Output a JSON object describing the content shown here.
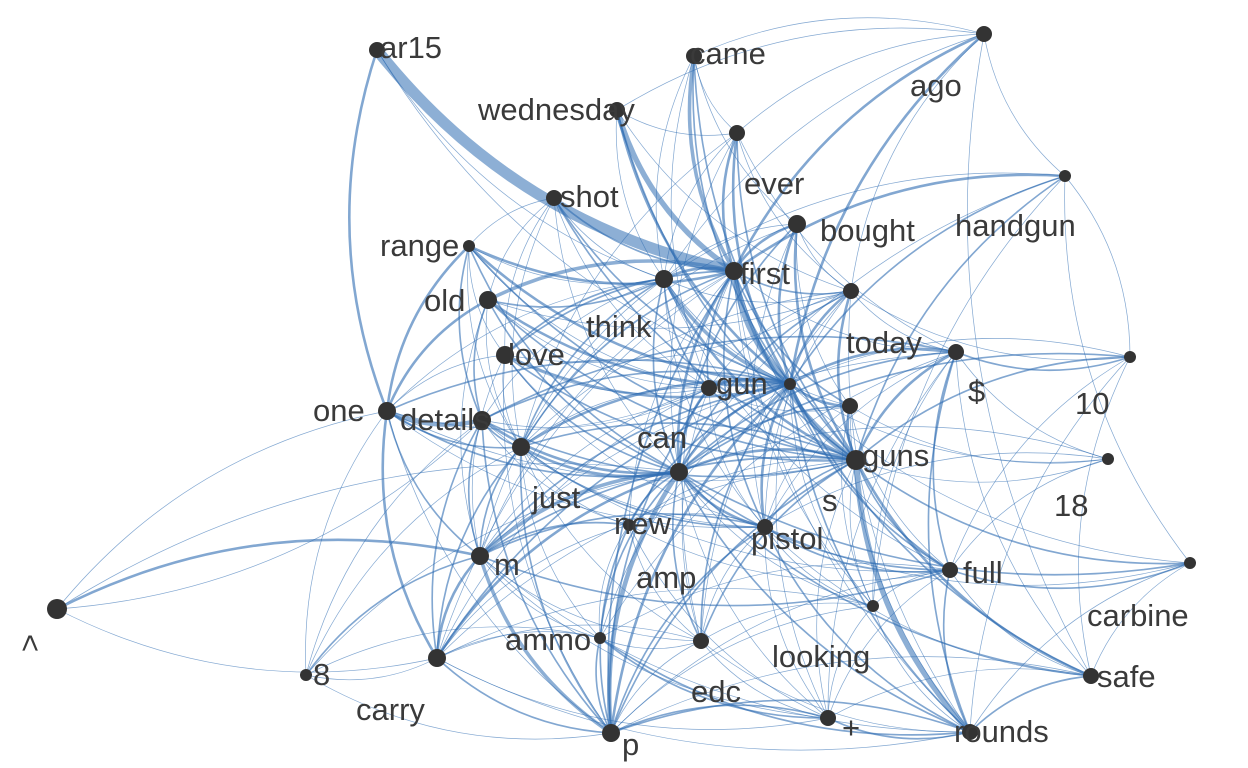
{
  "colors": {
    "background": "#ffffff",
    "edge": "#2f6db3",
    "node": "#333333",
    "label": "#3a3a3a"
  },
  "nodes": [
    {
      "id": "ar15",
      "label": "ar15",
      "size": 2
    },
    {
      "id": "came",
      "label": "came",
      "size": 2
    },
    {
      "id": "ago",
      "label": "ago",
      "size": 2
    },
    {
      "id": "wednesday",
      "label": "wednesday",
      "size": 2
    },
    {
      "id": "ever",
      "label": "ever",
      "size": 2
    },
    {
      "id": "shot",
      "label": "shot",
      "size": 2
    },
    {
      "id": "bought",
      "label": "bought",
      "size": 3
    },
    {
      "id": "handgun",
      "label": "handgun",
      "size": 1
    },
    {
      "id": "range",
      "label": "range",
      "size": 1
    },
    {
      "id": "first",
      "label": "first",
      "size": 3
    },
    {
      "id": "old",
      "label": "old",
      "size": 3
    },
    {
      "id": "think",
      "label": "think",
      "size": 3
    },
    {
      "id": "today",
      "label": "today",
      "size": 2
    },
    {
      "id": "love",
      "label": "love",
      "size": 3
    },
    {
      "id": "dollar",
      "label": "$",
      "size": 2
    },
    {
      "id": "ten",
      "label": "10",
      "size": 1
    },
    {
      "id": "gun",
      "label": "gun",
      "size": 1
    },
    {
      "id": "one",
      "label": "one",
      "size": 3
    },
    {
      "id": "details",
      "label": "details",
      "size": 3
    },
    {
      "id": "can",
      "label": "can",
      "size": 2
    },
    {
      "id": "guns",
      "label": "guns",
      "size": 2
    },
    {
      "id": "s",
      "label": "s",
      "size": 4
    },
    {
      "id": "eighteen",
      "label": "18",
      "size": 1
    },
    {
      "id": "just",
      "label": "just",
      "size": 3
    },
    {
      "id": "new",
      "label": "new",
      "size": 3
    },
    {
      "id": "pistol",
      "label": "pistol",
      "size": 2
    },
    {
      "id": "amp",
      "label": "amp",
      "size": 1
    },
    {
      "id": "m",
      "label": "m",
      "size": 3
    },
    {
      "id": "full",
      "label": "full",
      "size": 2
    },
    {
      "id": "carbine",
      "label": "carbine",
      "size": 1
    },
    {
      "id": "lt",
      "label": "<",
      "size": 4
    },
    {
      "id": "ammo",
      "label": "ammo",
      "size": 1
    },
    {
      "id": "looking",
      "label": "looking",
      "size": 1
    },
    {
      "id": "edc",
      "label": "edc",
      "size": 2
    },
    {
      "id": "eight",
      "label": "8",
      "size": 1
    },
    {
      "id": "carry",
      "label": "carry",
      "size": 3
    },
    {
      "id": "safe",
      "label": "safe",
      "size": 2
    },
    {
      "id": "plus",
      "label": "+",
      "size": 2
    },
    {
      "id": "rounds",
      "label": "rounds",
      "size": 2
    },
    {
      "id": "p",
      "label": "p",
      "size": 3
    }
  ],
  "edges": [
    [
      "ar15",
      "first",
      12
    ],
    [
      "ar15",
      "one",
      3
    ],
    [
      "ar15",
      "gun",
      1
    ],
    [
      "ar15",
      "think",
      1
    ],
    [
      "came",
      "first",
      4
    ],
    [
      "came",
      "can",
      1
    ],
    [
      "came",
      "gun",
      2
    ],
    [
      "came",
      "s",
      2
    ],
    [
      "came",
      "bought",
      1
    ],
    [
      "came",
      "ever",
      1
    ],
    [
      "came",
      "think",
      1
    ],
    [
      "ago",
      "first",
      3
    ],
    [
      "ago",
      "gun",
      3
    ],
    [
      "ago",
      "wednesday",
      1
    ],
    [
      "ago",
      "came",
      1
    ],
    [
      "ago",
      "ever",
      1
    ],
    [
      "ago",
      "handgun",
      1
    ],
    [
      "ago",
      "safe",
      1
    ],
    [
      "ago",
      "think",
      1
    ],
    [
      "ago",
      "today",
      1
    ],
    [
      "wednesday",
      "first",
      6
    ],
    [
      "wednesday",
      "gun",
      3
    ],
    [
      "wednesday",
      "s",
      2
    ],
    [
      "wednesday",
      "ever",
      1
    ],
    [
      "wednesday",
      "today",
      1
    ],
    [
      "wednesday",
      "think",
      1
    ],
    [
      "ever",
      "gun",
      3
    ],
    [
      "ever",
      "first",
      3
    ],
    [
      "ever",
      "s",
      2
    ],
    [
      "ever",
      "new",
      1
    ],
    [
      "ever",
      "think",
      1
    ],
    [
      "ever",
      "just",
      1
    ],
    [
      "ever",
      "today",
      1
    ],
    [
      "ever",
      "dollar",
      1
    ],
    [
      "shot",
      "first",
      2
    ],
    [
      "shot",
      "gun",
      2
    ],
    [
      "shot",
      "s",
      2
    ],
    [
      "shot",
      "new",
      1
    ],
    [
      "shot",
      "think",
      1
    ],
    [
      "shot",
      "can",
      1
    ],
    [
      "shot",
      "just",
      1
    ],
    [
      "shot",
      "range",
      1
    ],
    [
      "shot",
      "old",
      1
    ],
    [
      "shot",
      "love",
      1
    ],
    [
      "bought",
      "first",
      3
    ],
    [
      "bought",
      "gun",
      3
    ],
    [
      "bought",
      "s",
      3
    ],
    [
      "bought",
      "new",
      2
    ],
    [
      "bought",
      "just",
      1
    ],
    [
      "bought",
      "today",
      1
    ],
    [
      "bought",
      "think",
      1
    ],
    [
      "bought",
      "pistol",
      1
    ],
    [
      "bought",
      "guns",
      1
    ],
    [
      "handgun",
      "first",
      3
    ],
    [
      "handgun",
      "gun",
      2
    ],
    [
      "handgun",
      "s",
      2
    ],
    [
      "handgun",
      "new",
      1
    ],
    [
      "handgun",
      "looking",
      1
    ],
    [
      "handgun",
      "think",
      1
    ],
    [
      "handgun",
      "carbine",
      1
    ],
    [
      "range",
      "first",
      3
    ],
    [
      "range",
      "gun",
      3
    ],
    [
      "range",
      "new",
      2
    ],
    [
      "range",
      "s",
      2
    ],
    [
      "range",
      "one",
      3
    ],
    [
      "range",
      "details",
      2
    ],
    [
      "range",
      "just",
      1
    ],
    [
      "range",
      "can",
      1
    ],
    [
      "range",
      "think",
      1
    ],
    [
      "range",
      "love",
      1
    ],
    [
      "first",
      "gun",
      6
    ],
    [
      "first",
      "s",
      4
    ],
    [
      "first",
      "new",
      3
    ],
    [
      "first",
      "think",
      3
    ],
    [
      "first",
      "can",
      2
    ],
    [
      "first",
      "just",
      2
    ],
    [
      "first",
      "today",
      2
    ],
    [
      "first",
      "dollar",
      1
    ],
    [
      "first",
      "guns",
      2
    ],
    [
      "first",
      "pistol",
      2
    ],
    [
      "first",
      "love",
      2
    ],
    [
      "first",
      "old",
      4
    ],
    [
      "first",
      "p",
      2
    ],
    [
      "first",
      "rounds",
      1
    ],
    [
      "first",
      "edc",
      1
    ],
    [
      "first",
      "m",
      1
    ],
    [
      "first",
      "carry",
      1
    ],
    [
      "first",
      "looking",
      1
    ],
    [
      "first",
      "full",
      1
    ],
    [
      "first",
      "amp",
      1
    ],
    [
      "old",
      "gun",
      3
    ],
    [
      "old",
      "s",
      2
    ],
    [
      "old",
      "new",
      2
    ],
    [
      "old",
      "one",
      3
    ],
    [
      "old",
      "details",
      2
    ],
    [
      "old",
      "think",
      2
    ],
    [
      "old",
      "just",
      1
    ],
    [
      "old",
      "can",
      1
    ],
    [
      "old",
      "m",
      1
    ],
    [
      "old",
      "today",
      1
    ],
    [
      "think",
      "gun",
      4
    ],
    [
      "think",
      "s",
      3
    ],
    [
      "think",
      "new",
      2
    ],
    [
      "think",
      "just",
      2
    ],
    [
      "think",
      "can",
      2
    ],
    [
      "think",
      "love",
      2
    ],
    [
      "think",
      "one",
      1
    ],
    [
      "think",
      "details",
      1
    ],
    [
      "think",
      "today",
      1
    ],
    [
      "think",
      "guns",
      1
    ],
    [
      "think",
      "pistol",
      1
    ],
    [
      "think",
      "full",
      1
    ],
    [
      "think",
      "m",
      1
    ],
    [
      "today",
      "gun",
      3
    ],
    [
      "today",
      "s",
      3
    ],
    [
      "today",
      "new",
      2
    ],
    [
      "today",
      "just",
      1
    ],
    [
      "today",
      "can",
      1
    ],
    [
      "today",
      "pistol",
      1
    ],
    [
      "today",
      "dollar",
      1
    ],
    [
      "today",
      "rounds",
      1
    ],
    [
      "today",
      "ten",
      1
    ],
    [
      "today",
      "edc",
      1
    ],
    [
      "love",
      "gun",
      3
    ],
    [
      "love",
      "s",
      2
    ],
    [
      "love",
      "new",
      2
    ],
    [
      "love",
      "one",
      1
    ],
    [
      "love",
      "just",
      1
    ],
    [
      "love",
      "can",
      1
    ],
    [
      "love",
      "m",
      1
    ],
    [
      "love",
      "p",
      1
    ],
    [
      "love",
      "today",
      1
    ],
    [
      "love",
      "pistol",
      1
    ],
    [
      "dollar",
      "gun",
      3
    ],
    [
      "dollar",
      "s",
      3
    ],
    [
      "dollar",
      "new",
      2
    ],
    [
      "dollar",
      "ten",
      2
    ],
    [
      "dollar",
      "eighteen",
      1
    ],
    [
      "dollar",
      "full",
      2
    ],
    [
      "dollar",
      "rounds",
      2
    ],
    [
      "dollar",
      "pistol",
      1
    ],
    [
      "dollar",
      "safe",
      1
    ],
    [
      "dollar",
      "details",
      2
    ],
    [
      "dollar",
      "m",
      1
    ],
    [
      "dollar",
      "ammo",
      1
    ],
    [
      "dollar",
      "looking",
      1
    ],
    [
      "dollar",
      "plus",
      1
    ],
    [
      "ten",
      "s",
      2
    ],
    [
      "ten",
      "gun",
      1
    ],
    [
      "ten",
      "new",
      2
    ],
    [
      "ten",
      "rounds",
      1
    ],
    [
      "ten",
      "full",
      1
    ],
    [
      "ten",
      "handgun",
      1
    ],
    [
      "ten",
      "safe",
      1
    ],
    [
      "gun",
      "s",
      4
    ],
    [
      "gun",
      "new",
      3
    ],
    [
      "gun",
      "can",
      3
    ],
    [
      "gun",
      "just",
      3
    ],
    [
      "gun",
      "guns",
      3
    ],
    [
      "gun",
      "pistol",
      3
    ],
    [
      "gun",
      "m",
      2
    ],
    [
      "gun",
      "p",
      3
    ],
    [
      "gun",
      "edc",
      2
    ],
    [
      "gun",
      "full",
      2
    ],
    [
      "gun",
      "rounds",
      2
    ],
    [
      "gun",
      "safe",
      2
    ],
    [
      "gun",
      "carry",
      2
    ],
    [
      "gun",
      "amp",
      2
    ],
    [
      "gun",
      "one",
      2
    ],
    [
      "gun",
      "details",
      2
    ],
    [
      "gun",
      "looking",
      1
    ],
    [
      "gun",
      "plus",
      1
    ],
    [
      "gun",
      "ammo",
      1
    ],
    [
      "gun",
      "eighteen",
      1
    ],
    [
      "gun",
      "carbine",
      1
    ],
    [
      "one",
      "details",
      5
    ],
    [
      "one",
      "new",
      2
    ],
    [
      "one",
      "just",
      2
    ],
    [
      "one",
      "m",
      2
    ],
    [
      "one",
      "carry",
      3
    ],
    [
      "one",
      "eight",
      1
    ],
    [
      "one",
      "p",
      1
    ],
    [
      "one",
      "lt",
      1
    ],
    [
      "one",
      "can",
      1
    ],
    [
      "one",
      "pistol",
      1
    ],
    [
      "one",
      "s",
      1
    ],
    [
      "details",
      "new",
      3
    ],
    [
      "details",
      "just",
      2
    ],
    [
      "details",
      "m",
      2
    ],
    [
      "details",
      "carry",
      2
    ],
    [
      "details",
      "p",
      2
    ],
    [
      "details",
      "can",
      1
    ],
    [
      "details",
      "s",
      2
    ],
    [
      "details",
      "pistol",
      1
    ],
    [
      "details",
      "amp",
      1
    ],
    [
      "details",
      "eight",
      1
    ],
    [
      "can",
      "new",
      3
    ],
    [
      "can",
      "s",
      2
    ],
    [
      "can",
      "just",
      1
    ],
    [
      "can",
      "m",
      1
    ],
    [
      "can",
      "p",
      2
    ],
    [
      "can",
      "edc",
      1
    ],
    [
      "can",
      "pistol",
      1
    ],
    [
      "can",
      "guns",
      1
    ],
    [
      "can",
      "carry",
      1
    ],
    [
      "guns",
      "s",
      3
    ],
    [
      "guns",
      "new",
      2
    ],
    [
      "guns",
      "pistol",
      1
    ],
    [
      "guns",
      "full",
      1
    ],
    [
      "guns",
      "rounds",
      1
    ],
    [
      "guns",
      "looking",
      1
    ],
    [
      "guns",
      "eighteen",
      1
    ],
    [
      "s",
      "new",
      3
    ],
    [
      "s",
      "just",
      2
    ],
    [
      "s",
      "pistol",
      2
    ],
    [
      "s",
      "full",
      2
    ],
    [
      "s",
      "rounds",
      6
    ],
    [
      "s",
      "safe",
      3
    ],
    [
      "s",
      "p",
      2
    ],
    [
      "s",
      "m",
      2
    ],
    [
      "s",
      "edc",
      2
    ],
    [
      "s",
      "looking",
      1
    ],
    [
      "s",
      "plus",
      1
    ],
    [
      "s",
      "carbine",
      2
    ],
    [
      "s",
      "eighteen",
      1
    ],
    [
      "s",
      "amp",
      1
    ],
    [
      "s",
      "carry",
      1
    ],
    [
      "eighteen",
      "new",
      1
    ],
    [
      "eighteen",
      "full",
      1
    ],
    [
      "eighteen",
      "pistol",
      1
    ],
    [
      "just",
      "new",
      3
    ],
    [
      "just",
      "m",
      2
    ],
    [
      "just",
      "p",
      2
    ],
    [
      "just",
      "carry",
      2
    ],
    [
      "just",
      "pistol",
      2
    ],
    [
      "just",
      "amp",
      1
    ],
    [
      "just",
      "edc",
      1
    ],
    [
      "just",
      "full",
      1
    ],
    [
      "just",
      "ammo",
      1
    ],
    [
      "just",
      "eight",
      1
    ],
    [
      "new",
      "pistol",
      3
    ],
    [
      "new",
      "m",
      4
    ],
    [
      "new",
      "p",
      5
    ],
    [
      "new",
      "carry",
      3
    ],
    [
      "new",
      "edc",
      2
    ],
    [
      "new",
      "amp",
      2
    ],
    [
      "new",
      "full",
      2
    ],
    [
      "new",
      "rounds",
      2
    ],
    [
      "new",
      "safe",
      2
    ],
    [
      "new",
      "ammo",
      2
    ],
    [
      "new",
      "looking",
      1
    ],
    [
      "new",
      "plus",
      1
    ],
    [
      "new",
      "lt",
      1
    ],
    [
      "new",
      "eight",
      1
    ],
    [
      "new",
      "carbine",
      2
    ],
    [
      "pistol",
      "m",
      2
    ],
    [
      "pistol",
      "full",
      2
    ],
    [
      "pistol",
      "p",
      2
    ],
    [
      "pistol",
      "edc",
      1
    ],
    [
      "pistol",
      "rounds",
      2
    ],
    [
      "pistol",
      "plus",
      1
    ],
    [
      "pistol",
      "looking",
      1
    ],
    [
      "pistol",
      "amp",
      1
    ],
    [
      "pistol",
      "safe",
      1
    ],
    [
      "pistol",
      "carbine",
      1
    ],
    [
      "amp",
      "m",
      2
    ],
    [
      "amp",
      "p",
      2
    ],
    [
      "amp",
      "edc",
      1
    ],
    [
      "amp",
      "full",
      1
    ],
    [
      "amp",
      "carry",
      1
    ],
    [
      "amp",
      "ammo",
      1
    ],
    [
      "amp",
      "plus",
      1
    ],
    [
      "m",
      "lt",
      3
    ],
    [
      "m",
      "carry",
      3
    ],
    [
      "m",
      "p",
      4
    ],
    [
      "m",
      "eight",
      2
    ],
    [
      "m",
      "full",
      2
    ],
    [
      "m",
      "ammo",
      1
    ],
    [
      "m",
      "edc",
      1
    ],
    [
      "m",
      "rounds",
      1
    ],
    [
      "m",
      "plus",
      1
    ],
    [
      "full",
      "carbine",
      2
    ],
    [
      "full",
      "safe",
      1
    ],
    [
      "full",
      "rounds",
      2
    ],
    [
      "full",
      "looking",
      1
    ],
    [
      "full",
      "plus",
      1
    ],
    [
      "full",
      "p",
      1
    ],
    [
      "full",
      "ammo",
      1
    ],
    [
      "carbine",
      "rounds",
      1
    ],
    [
      "carbine",
      "safe",
      1
    ],
    [
      "ammo",
      "p",
      2
    ],
    [
      "ammo",
      "rounds",
      2
    ],
    [
      "ammo",
      "plus",
      2
    ],
    [
      "ammo",
      "edc",
      1
    ],
    [
      "ammo",
      "carry",
      1
    ],
    [
      "ammo",
      "eight",
      1
    ],
    [
      "looking",
      "p",
      1
    ],
    [
      "looking",
      "rounds",
      1
    ],
    [
      "looking",
      "plus",
      1
    ],
    [
      "looking",
      "edc",
      1
    ],
    [
      "looking",
      "carry",
      1
    ],
    [
      "edc",
      "p",
      1
    ],
    [
      "edc",
      "carry",
      1
    ],
    [
      "edc",
      "plus",
      1
    ],
    [
      "edc",
      "rounds",
      1
    ],
    [
      "eight",
      "carry",
      1
    ],
    [
      "eight",
      "p",
      1
    ],
    [
      "carry",
      "p",
      2
    ],
    [
      "carry",
      "rounds",
      1
    ],
    [
      "carry",
      "plus",
      1
    ],
    [
      "safe",
      "rounds",
      2
    ],
    [
      "safe",
      "plus",
      1
    ],
    [
      "safe",
      "p",
      1
    ],
    [
      "plus",
      "rounds",
      2
    ],
    [
      "plus",
      "p",
      2
    ],
    [
      "rounds",
      "p",
      2
    ],
    [
      "lt",
      "carry",
      1
    ],
    [
      "lt",
      "details",
      1
    ]
  ]
}
